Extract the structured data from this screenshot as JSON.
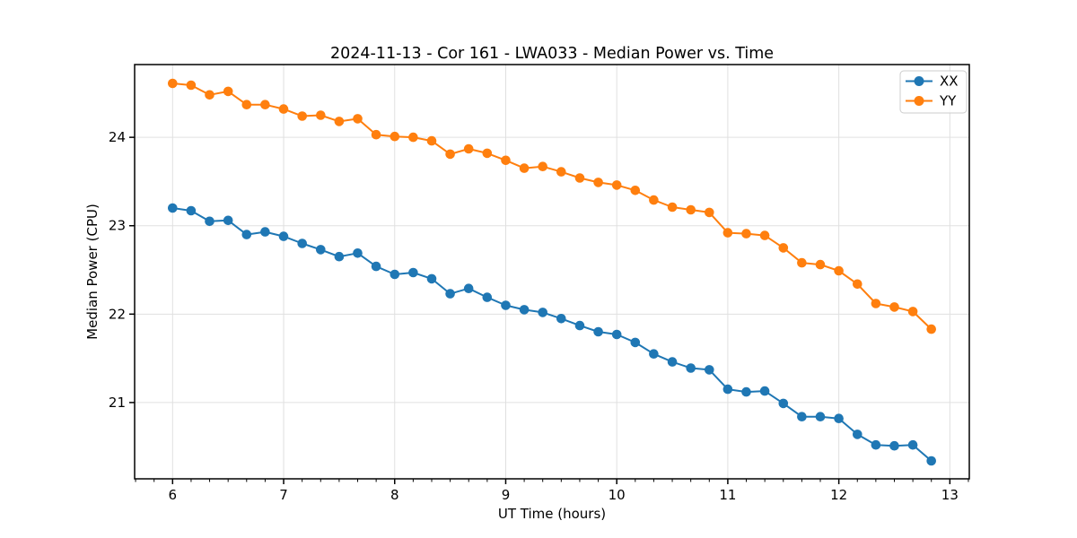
{
  "chart_data": {
    "type": "line",
    "title": "2024-11-13 - Cor 161 - LWA033 - Median Power vs. Time",
    "xlabel": "UT Time (hours)",
    "ylabel": "Median Power (CPU)",
    "xlim": [
      5.658,
      13.175
    ],
    "ylim": [
      20.137,
      24.823
    ],
    "xticks": [
      6,
      7,
      8,
      9,
      10,
      11,
      12,
      13
    ],
    "yticks": [
      21,
      22,
      23,
      24
    ],
    "minor_xtick_step": 0.16667,
    "grid": true,
    "legend_position": "upper right",
    "background_color": "#ffffff",
    "grid_color": "#e0e0e0",
    "x": [
      6.0,
      6.1667,
      6.3333,
      6.5,
      6.6667,
      6.8333,
      7.0,
      7.1667,
      7.3333,
      7.5,
      7.6667,
      7.8333,
      8.0,
      8.1667,
      8.3333,
      8.5,
      8.6667,
      8.8333,
      9.0,
      9.1667,
      9.3333,
      9.5,
      9.6667,
      9.8333,
      10.0,
      10.1667,
      10.3333,
      10.5,
      10.6667,
      10.8333,
      11.0,
      11.1667,
      11.3333,
      11.5,
      11.6667,
      11.8333,
      12.0,
      12.1667,
      12.3333,
      12.5,
      12.6667,
      12.8333
    ],
    "series": [
      {
        "name": "XX",
        "color": "#1f77b4",
        "values": [
          23.2,
          23.17,
          23.05,
          23.06,
          22.9,
          22.93,
          22.88,
          22.8,
          22.73,
          22.65,
          22.69,
          22.54,
          22.45,
          22.47,
          22.4,
          22.23,
          22.29,
          22.19,
          22.1,
          22.05,
          22.02,
          21.95,
          21.87,
          21.8,
          21.77,
          21.68,
          21.55,
          21.46,
          21.39,
          21.37,
          21.15,
          21.12,
          21.13,
          20.99,
          20.84,
          20.84,
          20.82,
          20.64,
          20.52,
          20.51,
          20.52,
          20.34
        ]
      },
      {
        "name": "YY",
        "color": "#ff7f0e",
        "values": [
          24.61,
          24.59,
          24.48,
          24.52,
          24.37,
          24.37,
          24.32,
          24.24,
          24.25,
          24.18,
          24.21,
          24.03,
          24.01,
          24.0,
          23.96,
          23.81,
          23.87,
          23.82,
          23.74,
          23.65,
          23.67,
          23.61,
          23.54,
          23.49,
          23.46,
          23.4,
          23.29,
          23.21,
          23.18,
          23.15,
          22.92,
          22.91,
          22.89,
          22.75,
          22.58,
          22.56,
          22.49,
          22.34,
          22.12,
          22.08,
          22.03,
          21.83
        ]
      }
    ]
  }
}
